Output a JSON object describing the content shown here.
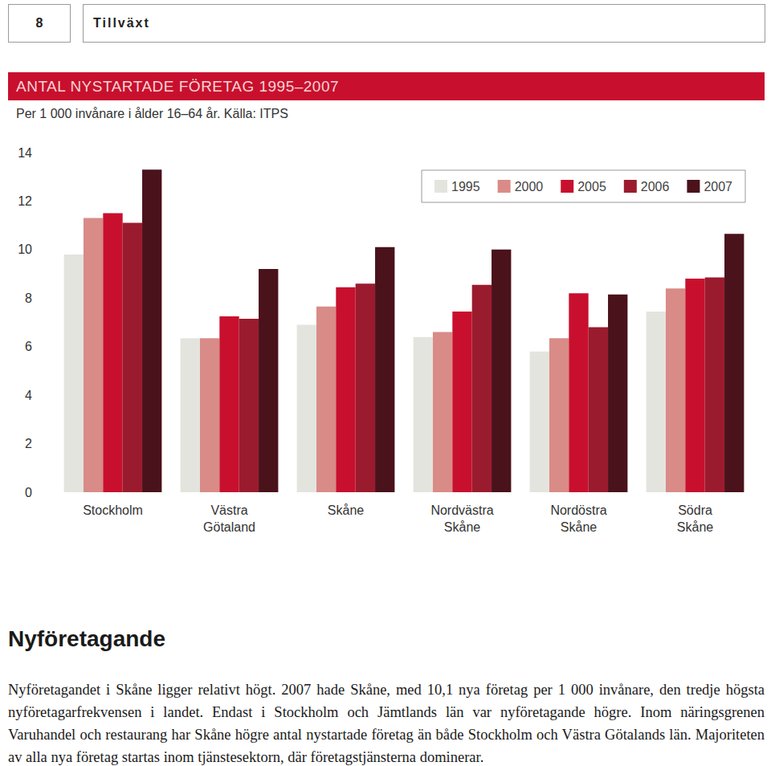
{
  "header": {
    "page_number": "8",
    "section": "Tillväxt"
  },
  "chart_data": {
    "type": "bar",
    "title": "ANTAL NYSTARTADE FÖRETAG 1995–2007",
    "subtitle": "Per 1 000 invånare i ålder 16–64 år. Källa: ITPS",
    "categories": [
      "Stockholm",
      "Västra\nGötaland",
      "Skåne",
      "Nordvästra\nSkåne",
      "Nordöstra\nSkåne",
      "Södra\nSkåne"
    ],
    "series": [
      {
        "name": "1995",
        "color": "#e4e4df",
        "values": [
          9.8,
          6.35,
          6.9,
          6.4,
          5.8,
          7.45
        ]
      },
      {
        "name": "2000",
        "color": "#d98b87",
        "values": [
          11.3,
          6.35,
          7.65,
          6.6,
          6.35,
          8.4
        ]
      },
      {
        "name": "2005",
        "color": "#c8102e",
        "values": [
          11.5,
          7.25,
          8.45,
          7.45,
          8.2,
          8.8
        ]
      },
      {
        "name": "2006",
        "color": "#9b1b2e",
        "values": [
          11.1,
          7.15,
          8.6,
          8.55,
          6.8,
          8.85
        ]
      },
      {
        "name": "2007",
        "color": "#4a121b",
        "values": [
          13.3,
          9.2,
          10.1,
          10.0,
          8.15,
          10.65
        ]
      }
    ],
    "ylim": [
      0,
      14
    ],
    "yticks": [
      0,
      2,
      4,
      6,
      8,
      10,
      12,
      14
    ],
    "grid": false,
    "legend": "top-right"
  },
  "article": {
    "heading": "Nyföretagande",
    "text": "Nyföretagandet i Skåne ligger relativt högt. 2007 hade Skåne, med 10,1 nya företag per 1 000 invånare, den tredje högsta nyföretagarfrekvensen i landet. Endast i Stockholm och Jämtlands län var nyföretagande högre. Inom näringsgrenen Varuhandel och restaurang har Skåne högre antal nystartade företag än både Stockholm och Västra Götalands län. Majoriteten av alla nya företag startas inom tjänstesektorn, där företagstjänsterna dominerar."
  }
}
